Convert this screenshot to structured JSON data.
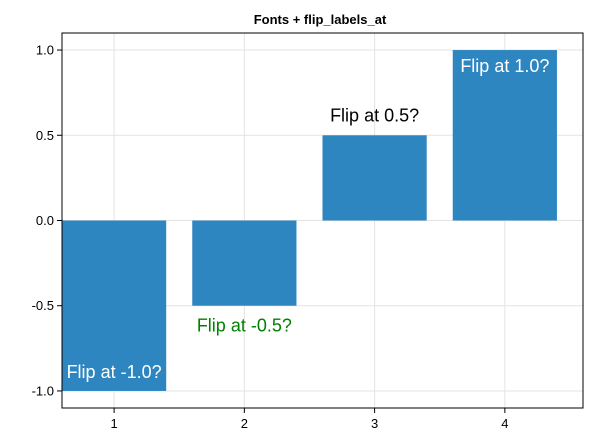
{
  "chart_data": {
    "type": "bar",
    "title": "Fonts + flip_labels_at",
    "xlabel": "",
    "ylabel": "",
    "categories": [
      "1",
      "2",
      "3",
      "4"
    ],
    "x": [
      1,
      2,
      3,
      4
    ],
    "values": [
      -1.0,
      -0.5,
      0.5,
      1.0
    ],
    "bar_labels": [
      "Flip at -1.0?",
      "Flip at -0.5?",
      "Flip at 0.5?",
      "Flip at 1.0?"
    ],
    "label_colors": [
      "#ffffff",
      "#008000",
      "#000000",
      "#ffffff"
    ],
    "bar_color": "#2e86c1",
    "xlim": [
      0.6,
      4.6
    ],
    "ylim": [
      -1.1,
      1.1
    ],
    "yticks": [
      "-1.0",
      "-0.5",
      "0.0",
      "0.5",
      "1.0"
    ],
    "ytick_values": [
      -1.0,
      -0.5,
      0.0,
      0.5,
      1.0
    ],
    "xticks": [
      "1",
      "2",
      "3",
      "4"
    ],
    "xtick_values": [
      1,
      2,
      3,
      4
    ],
    "grid": true,
    "legend": "none"
  }
}
